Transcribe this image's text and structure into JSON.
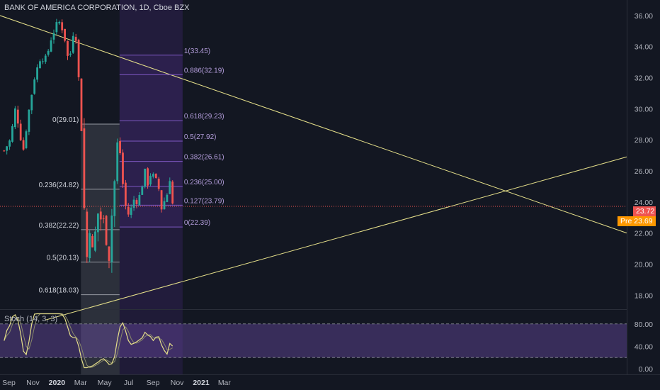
{
  "header": {
    "title": "BANK OF AMERICA CORPORATION, 1D, Cboe BZX"
  },
  "indicator": {
    "label": "Stoch (14, 3, 3)"
  },
  "price_tags": {
    "last": "23.72",
    "pre_label": "Pre",
    "pre": "23.69"
  },
  "colors": {
    "up": "#26a69a",
    "down": "#ef5350",
    "fib_left": "#ffffff",
    "fib_right": "#7e57c2",
    "trend": "#e6e08a",
    "pre": "#ff9800"
  },
  "chart_data": {
    "type": "candlestick",
    "title": "BANK OF AMERICA CORPORATION, 1D, Cboe BZX",
    "x_ticks": [
      "Sep",
      "Nov",
      "2020",
      "Mar",
      "May",
      "Jul",
      "Sep",
      "Nov",
      "2021",
      "Mar"
    ],
    "y_ticks": [
      "36.00",
      "34.00",
      "32.00",
      "30.00",
      "28.00",
      "26.00",
      "24.00",
      "22.00",
      "20.00",
      "18.00"
    ],
    "ylim": [
      17.1,
      37.0
    ],
    "price_path": [
      {
        "date": "2019-08-20",
        "close": 27.3
      },
      {
        "date": "2019-09-05",
        "close": 28.0
      },
      {
        "date": "2019-09-18",
        "close": 30.1
      },
      {
        "date": "2019-10-02",
        "close": 28.0
      },
      {
        "date": "2019-10-08",
        "close": 27.4
      },
      {
        "date": "2019-10-20",
        "close": 29.6
      },
      {
        "date": "2019-11-05",
        "close": 32.0
      },
      {
        "date": "2019-11-20",
        "close": 33.3
      },
      {
        "date": "2019-12-05",
        "close": 33.2
      },
      {
        "date": "2019-12-18",
        "close": 34.6
      },
      {
        "date": "2020-01-02",
        "close": 35.5
      },
      {
        "date": "2020-01-10",
        "close": 35.6
      },
      {
        "date": "2020-01-24",
        "close": 34.2
      },
      {
        "date": "2020-01-31",
        "close": 32.8
      },
      {
        "date": "2020-02-12",
        "close": 35.0
      },
      {
        "date": "2020-02-21",
        "close": 34.4
      },
      {
        "date": "2020-02-26",
        "close": 31.5
      },
      {
        "date": "2020-03-02",
        "close": 29.5
      },
      {
        "date": "2020-03-09",
        "close": 25.0
      },
      {
        "date": "2020-03-12",
        "close": 21.5
      },
      {
        "date": "2020-03-16",
        "close": 20.0
      },
      {
        "date": "2020-03-20",
        "close": 21.5
      },
      {
        "date": "2020-03-26",
        "close": 23.0
      },
      {
        "date": "2020-04-03",
        "close": 19.5
      },
      {
        "date": "2020-04-10",
        "close": 23.5
      },
      {
        "date": "2020-04-20",
        "close": 23.0
      },
      {
        "date": "2020-05-01",
        "close": 22.5
      },
      {
        "date": "2020-05-13",
        "close": 20.5
      },
      {
        "date": "2020-05-20",
        "close": 23.5
      },
      {
        "date": "2020-05-27",
        "close": 25.5
      },
      {
        "date": "2020-06-03",
        "close": 28.0
      },
      {
        "date": "2020-06-08",
        "close": 28.9
      },
      {
        "date": "2020-06-11",
        "close": 25.0
      },
      {
        "date": "2020-06-18",
        "close": 25.2
      },
      {
        "date": "2020-06-26",
        "close": 23.0
      },
      {
        "date": "2020-07-08",
        "close": 23.6
      },
      {
        "date": "2020-07-15",
        "close": 24.2
      },
      {
        "date": "2020-07-24",
        "close": 24.0
      },
      {
        "date": "2020-07-31",
        "close": 24.6
      },
      {
        "date": "2020-08-12",
        "close": 26.0
      },
      {
        "date": "2020-08-20",
        "close": 25.0
      },
      {
        "date": "2020-08-27",
        "close": 26.0
      },
      {
        "date": "2020-09-04",
        "close": 25.5
      },
      {
        "date": "2020-09-14",
        "close": 25.2
      },
      {
        "date": "2020-09-21",
        "close": 23.5
      },
      {
        "date": "2020-09-30",
        "close": 24.1
      },
      {
        "date": "2020-10-08",
        "close": 24.6
      },
      {
        "date": "2020-10-14",
        "close": 25.6
      },
      {
        "date": "2020-10-19",
        "close": 24.0
      },
      {
        "date": "2020-10-23",
        "close": 23.7
      }
    ],
    "fib_left": [
      {
        "label": "0(29.01)",
        "value": 29.01
      },
      {
        "label": "0.236(24.82)",
        "value": 24.82
      },
      {
        "label": "0.382(22.22)",
        "value": 22.22
      },
      {
        "label": "0.5(20.13)",
        "value": 20.13
      },
      {
        "label": "0.618(18.03)",
        "value": 18.03
      }
    ],
    "fib_right": [
      {
        "label": "1(33.45)",
        "value": 33.45
      },
      {
        "label": "0.886(32.19)",
        "value": 32.19
      },
      {
        "label": "0.618(29.23)",
        "value": 29.23
      },
      {
        "label": "0.5(27.92)",
        "value": 27.92
      },
      {
        "label": "0.382(26.61)",
        "value": 26.61
      },
      {
        "label": "0.236(25.00)",
        "value": 25.0
      },
      {
        "label": "0.127(23.79)",
        "value": 23.79
      },
      {
        "label": "0(22.39)",
        "value": 22.39
      }
    ],
    "last_price": 23.72,
    "stoch": {
      "name": "Stoch (14, 3, 3)",
      "y_ticks": [
        "80.00",
        "40.00",
        "0.00"
      ],
      "ylim": [
        -10,
        105
      ],
      "band": [
        20,
        80
      ]
    }
  }
}
